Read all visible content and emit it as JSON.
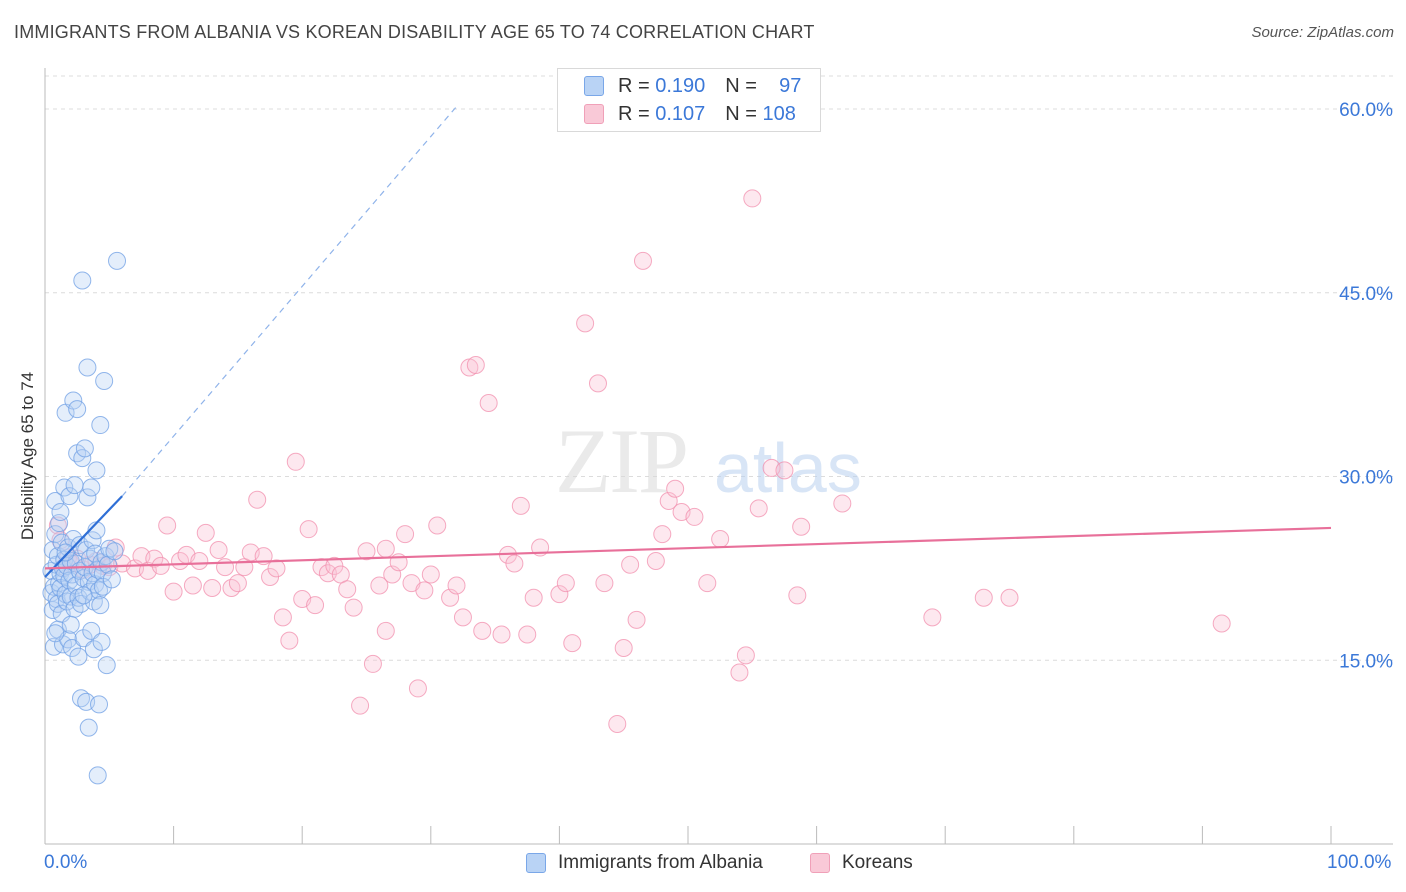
{
  "title": "IMMIGRANTS FROM ALBANIA VS KOREAN DISABILITY AGE 65 TO 74 CORRELATION CHART",
  "source": "Source: ZipAtlas.com",
  "watermark": {
    "zip": "ZIP",
    "atlas": "atlas"
  },
  "legend": {
    "rows": [
      {
        "r_label": "R =",
        "r_value": "0.190",
        "n_label": "N =",
        "n_value": "97"
      },
      {
        "r_label": "R =",
        "r_value": "0.107",
        "n_label": "N =",
        "n_value": "108"
      }
    ]
  },
  "bottom_legend": {
    "series1": "Immigrants from Albania",
    "series2": "Koreans"
  },
  "x_axis": {
    "min_label": "0.0%",
    "max_label": "100.0%"
  },
  "colors": {
    "blue": "#6f9fe4",
    "blue_line": "#2f6fd6",
    "pink": "#f28fae",
    "pink_line": "#e8709a",
    "label": "#3b78d8"
  },
  "chart_data": {
    "type": "scatter",
    "title": "IMMIGRANTS FROM ALBANIA VS KOREAN DISABILITY AGE 65 TO 74 CORRELATION CHART",
    "xlabel": "",
    "ylabel": "Disability Age 65 to 74",
    "xlim": [
      0,
      100
    ],
    "ylim": [
      0,
      64
    ],
    "y_ticks": [
      15,
      30,
      45,
      60
    ],
    "y_tick_labels": [
      "15.0%",
      "30.0%",
      "45.0%",
      "60.0%"
    ],
    "series": [
      {
        "name": "Immigrants from Albania",
        "r": 0.19,
        "n": 97,
        "trend": {
          "x0": 0,
          "y0": 21.8,
          "x1": 6.0,
          "y1": 28.4,
          "dash_to_x": 32,
          "dash_to_y": 60.2
        },
        "points": [
          [
            0.5,
            22.3
          ],
          [
            0.5,
            20.5
          ],
          [
            0.6,
            24.0
          ],
          [
            0.6,
            19.1
          ],
          [
            0.7,
            21.0
          ],
          [
            0.7,
            16.1
          ],
          [
            0.8,
            28.0
          ],
          [
            0.8,
            25.3
          ],
          [
            0.9,
            22.8
          ],
          [
            0.9,
            20.0
          ],
          [
            1.0,
            23.5
          ],
          [
            1.0,
            19.6
          ],
          [
            1.0,
            17.5
          ],
          [
            1.1,
            21.3
          ],
          [
            1.1,
            26.2
          ],
          [
            1.2,
            22.1
          ],
          [
            1.2,
            20.9
          ],
          [
            1.3,
            24.6
          ],
          [
            1.3,
            18.8
          ],
          [
            1.4,
            22.5
          ],
          [
            1.4,
            16.3
          ],
          [
            1.5,
            23.2
          ],
          [
            1.5,
            21.9
          ],
          [
            1.5,
            29.1
          ],
          [
            1.6,
            20.4
          ],
          [
            1.6,
            35.2
          ],
          [
            1.7,
            22.7
          ],
          [
            1.7,
            19.8
          ],
          [
            1.8,
            24.2
          ],
          [
            1.8,
            16.7
          ],
          [
            1.9,
            21.5
          ],
          [
            1.9,
            28.4
          ],
          [
            2.0,
            23.1
          ],
          [
            2.0,
            20.2
          ],
          [
            2.1,
            22.0
          ],
          [
            2.1,
            16.0
          ],
          [
            2.2,
            36.2
          ],
          [
            2.2,
            24.9
          ],
          [
            2.3,
            19.2
          ],
          [
            2.3,
            29.3
          ],
          [
            2.4,
            22.9
          ],
          [
            2.4,
            21.1
          ],
          [
            2.5,
            35.5
          ],
          [
            2.5,
            31.9
          ],
          [
            2.6,
            20.1
          ],
          [
            2.6,
            15.3
          ],
          [
            2.7,
            24.4
          ],
          [
            2.7,
            22.3
          ],
          [
            2.8,
            11.9
          ],
          [
            2.8,
            19.6
          ],
          [
            2.9,
            46.0
          ],
          [
            2.9,
            31.5
          ],
          [
            3.0,
            21.7
          ],
          [
            3.0,
            16.8
          ],
          [
            3.1,
            32.3
          ],
          [
            3.1,
            22.6
          ],
          [
            3.2,
            24.0
          ],
          [
            3.2,
            11.6
          ],
          [
            3.3,
            38.9
          ],
          [
            3.3,
            28.3
          ],
          [
            3.4,
            21.4
          ],
          [
            3.4,
            9.5
          ],
          [
            3.5,
            23.3
          ],
          [
            3.5,
            20.6
          ],
          [
            3.6,
            29.1
          ],
          [
            3.6,
            17.4
          ],
          [
            3.7,
            24.8
          ],
          [
            3.7,
            22.1
          ],
          [
            3.8,
            19.8
          ],
          [
            3.8,
            15.9
          ],
          [
            3.9,
            23.7
          ],
          [
            3.9,
            21.2
          ],
          [
            4.0,
            30.5
          ],
          [
            4.0,
            25.6
          ],
          [
            4.1,
            22.4
          ],
          [
            4.1,
            5.6
          ],
          [
            4.2,
            20.7
          ],
          [
            4.2,
            11.4
          ],
          [
            4.3,
            34.2
          ],
          [
            4.3,
            19.5
          ],
          [
            4.4,
            23.0
          ],
          [
            4.4,
            16.5
          ],
          [
            4.5,
            22.1
          ],
          [
            4.5,
            21.0
          ],
          [
            4.6,
            37.8
          ],
          [
            4.7,
            23.5
          ],
          [
            4.8,
            14.6
          ],
          [
            4.9,
            22.8
          ],
          [
            5.0,
            24.1
          ],
          [
            5.2,
            21.6
          ],
          [
            5.4,
            23.9
          ],
          [
            5.6,
            47.6
          ],
          [
            1.2,
            27.1
          ],
          [
            0.8,
            17.2
          ],
          [
            2.0,
            17.9
          ],
          [
            3.0,
            20.3
          ],
          [
            1.6,
            23.8
          ]
        ]
      },
      {
        "name": "Koreans",
        "r": 0.107,
        "n": 108,
        "trend": {
          "x0": 0,
          "y0": 22.5,
          "x1": 100,
          "y1": 25.8
        },
        "points": [
          [
            1.0,
            26.0
          ],
          [
            1.2,
            24.8
          ],
          [
            1.5,
            22.6
          ],
          [
            1.8,
            23.4
          ],
          [
            2.0,
            22.9
          ],
          [
            2.5,
            23.3
          ],
          [
            3.0,
            22.4
          ],
          [
            3.5,
            22.8
          ],
          [
            4.0,
            23.1
          ],
          [
            4.5,
            22.7
          ],
          [
            5.0,
            22.6
          ],
          [
            5.5,
            24.2
          ],
          [
            6.0,
            22.9
          ],
          [
            7.0,
            22.5
          ],
          [
            7.5,
            23.5
          ],
          [
            8.0,
            22.3
          ],
          [
            8.5,
            23.3
          ],
          [
            9.0,
            22.7
          ],
          [
            9.5,
            26.0
          ],
          [
            10.0,
            20.6
          ],
          [
            10.5,
            23.1
          ],
          [
            11.0,
            23.6
          ],
          [
            11.5,
            21.1
          ],
          [
            12.0,
            23.1
          ],
          [
            12.5,
            25.4
          ],
          [
            13.0,
            20.9
          ],
          [
            13.5,
            24.0
          ],
          [
            14.0,
            22.6
          ],
          [
            14.5,
            20.9
          ],
          [
            15.0,
            21.3
          ],
          [
            15.5,
            22.6
          ],
          [
            16.0,
            23.8
          ],
          [
            16.5,
            28.1
          ],
          [
            17.0,
            23.5
          ],
          [
            17.5,
            21.8
          ],
          [
            18.0,
            22.5
          ],
          [
            18.5,
            18.5
          ],
          [
            19.0,
            16.6
          ],
          [
            19.5,
            31.2
          ],
          [
            20.0,
            20.0
          ],
          [
            20.5,
            25.7
          ],
          [
            21.0,
            19.5
          ],
          [
            21.5,
            22.6
          ],
          [
            22.0,
            22.1
          ],
          [
            22.5,
            22.7
          ],
          [
            23.0,
            22.0
          ],
          [
            23.5,
            20.8
          ],
          [
            24.0,
            19.3
          ],
          [
            24.5,
            11.3
          ],
          [
            25.0,
            23.9
          ],
          [
            25.5,
            14.7
          ],
          [
            26.0,
            21.1
          ],
          [
            26.5,
            17.4
          ],
          [
            27.0,
            22.0
          ],
          [
            27.5,
            23.0
          ],
          [
            28.0,
            25.3
          ],
          [
            28.5,
            21.3
          ],
          [
            29.0,
            12.7
          ],
          [
            29.5,
            20.7
          ],
          [
            30.0,
            22.0
          ],
          [
            30.5,
            26.0
          ],
          [
            31.5,
            20.1
          ],
          [
            32.0,
            21.1
          ],
          [
            32.5,
            18.5
          ],
          [
            33.0,
            38.9
          ],
          [
            33.5,
            39.1
          ],
          [
            34.0,
            17.4
          ],
          [
            34.5,
            36.0
          ],
          [
            35.5,
            17.1
          ],
          [
            36.0,
            23.6
          ],
          [
            36.5,
            22.9
          ],
          [
            37.0,
            27.6
          ],
          [
            37.5,
            17.1
          ],
          [
            38.0,
            20.1
          ],
          [
            38.5,
            24.2
          ],
          [
            40.0,
            20.4
          ],
          [
            40.5,
            21.3
          ],
          [
            41.0,
            16.4
          ],
          [
            42.0,
            42.5
          ],
          [
            43.0,
            37.6
          ],
          [
            43.5,
            21.3
          ],
          [
            44.5,
            9.8
          ],
          [
            45.0,
            16.0
          ],
          [
            45.5,
            22.8
          ],
          [
            46.0,
            18.3
          ],
          [
            46.5,
            47.6
          ],
          [
            47.5,
            23.1
          ],
          [
            48.0,
            25.3
          ],
          [
            48.5,
            28.0
          ],
          [
            49.0,
            29.0
          ],
          [
            49.5,
            27.1
          ],
          [
            50.5,
            26.7
          ],
          [
            51.5,
            21.3
          ],
          [
            52.5,
            24.9
          ],
          [
            54.0,
            14.0
          ],
          [
            54.5,
            15.4
          ],
          [
            55.0,
            52.7
          ],
          [
            55.5,
            27.4
          ],
          [
            56.5,
            30.7
          ],
          [
            57.5,
            30.5
          ],
          [
            58.5,
            20.3
          ],
          [
            58.8,
            25.9
          ],
          [
            62.0,
            27.8
          ],
          [
            69.0,
            18.5
          ],
          [
            73.0,
            20.1
          ],
          [
            75.0,
            20.1
          ],
          [
            91.5,
            18.0
          ],
          [
            26.5,
            24.1
          ]
        ]
      }
    ]
  }
}
